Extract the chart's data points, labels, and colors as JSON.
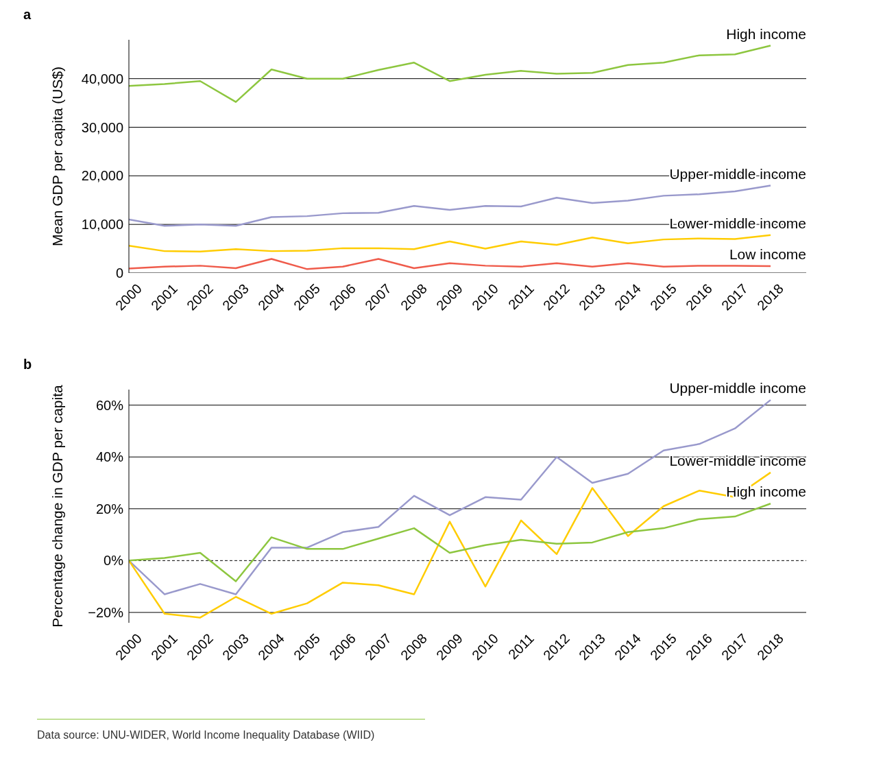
{
  "chart_data": [
    {
      "type": "line",
      "title": "a",
      "ylabel": "Mean GDP per capita (US$)",
      "x": [
        2000,
        2001,
        2002,
        2003,
        2004,
        2005,
        2006,
        2007,
        2008,
        2009,
        2010,
        2011,
        2012,
        2013,
        2014,
        2015,
        2016,
        2017,
        2018
      ],
      "xlim": [
        2000,
        2019
      ],
      "xticks": [
        2000,
        2001,
        2002,
        2003,
        2004,
        2005,
        2006,
        2007,
        2008,
        2009,
        2010,
        2011,
        2012,
        2013,
        2014,
        2015,
        2016,
        2017,
        2018
      ],
      "ylim": [
        0,
        48000
      ],
      "yticks": [
        {
          "value": 0,
          "label": "0"
        },
        {
          "value": 10000,
          "label": "10,000"
        },
        {
          "value": 20000,
          "label": "20,000"
        },
        {
          "value": 30000,
          "label": "30,000"
        },
        {
          "value": 40000,
          "label": "40,000"
        }
      ],
      "grid": "y",
      "legend": false,
      "marker": "none",
      "line_style": "solid",
      "series": [
        {
          "name": "High income",
          "color": "#8dc63f",
          "values": [
            38500,
            38900,
            39500,
            35200,
            41900,
            40000,
            40000,
            41800,
            43300,
            39500,
            40800,
            41600,
            41000,
            41200,
            42800,
            43300,
            44800,
            45000,
            46800
          ]
        },
        {
          "name": "Upper-middle income",
          "color": "#9999cc",
          "values": [
            11000,
            9700,
            10000,
            9700,
            11500,
            11700,
            12300,
            12400,
            13800,
            13000,
            13800,
            13700,
            15500,
            14400,
            14900,
            15900,
            16200,
            16800,
            18000
          ]
        },
        {
          "name": "Lower-middle income",
          "color": "#ffcc00",
          "values": [
            5600,
            4500,
            4400,
            4900,
            4500,
            4600,
            5100,
            5100,
            4900,
            6500,
            5000,
            6500,
            5800,
            7300,
            6100,
            6900,
            7100,
            7000,
            7800
          ]
        },
        {
          "name": "Low income",
          "color": "#ef5b4b",
          "values": [
            900,
            1300,
            1500,
            1000,
            2900,
            800,
            1300,
            2900,
            1000,
            2000,
            1500,
            1300,
            2000,
            1300,
            2000,
            1300,
            1500,
            1500,
            1400
          ]
        }
      ]
    },
    {
      "type": "line",
      "title": "b",
      "ylabel": "Percentage change in GDP per capita",
      "x": [
        2000,
        2001,
        2002,
        2003,
        2004,
        2005,
        2006,
        2007,
        2008,
        2009,
        2010,
        2011,
        2012,
        2013,
        2014,
        2015,
        2016,
        2017,
        2018
      ],
      "xlim": [
        2000,
        2019
      ],
      "xticks": [
        2000,
        2001,
        2002,
        2003,
        2004,
        2005,
        2006,
        2007,
        2008,
        2009,
        2010,
        2011,
        2012,
        2013,
        2014,
        2015,
        2016,
        2017,
        2018
      ],
      "ylim": [
        -24,
        66
      ],
      "yticks": [
        {
          "value": -20,
          "label": "−20%"
        },
        {
          "value": 0,
          "label": "0%"
        },
        {
          "value": 20,
          "label": "20%"
        },
        {
          "value": 40,
          "label": "40%"
        },
        {
          "value": 60,
          "label": "60%"
        }
      ],
      "grid": "y",
      "legend": false,
      "marker": "none",
      "line_style": "solid",
      "ref_lines": [
        {
          "axis": "y",
          "value": 0,
          "line_style": "dashed",
          "color": "#000000"
        }
      ],
      "annotations": [
        "Data source: UNU-WIDER, World Income Inequality Database (WIID)"
      ],
      "series": [
        {
          "name": "Upper-middle income",
          "color": "#9999cc",
          "values": [
            0,
            -13,
            -9,
            -13,
            5,
            5,
            11,
            13,
            25,
            17.5,
            24.5,
            23.5,
            40,
            30,
            33.5,
            42.5,
            45,
            51,
            62
          ]
        },
        {
          "name": "Lower-middle income",
          "color": "#ffcc00",
          "values": [
            0,
            -20.5,
            -22,
            -14,
            -20.5,
            -16.5,
            -8.5,
            -9.5,
            -13,
            15,
            -10,
            15.5,
            2.5,
            28,
            9.5,
            21,
            27,
            24.5,
            34
          ]
        },
        {
          "name": "High income",
          "color": "#8dc63f",
          "values": [
            0,
            1,
            3,
            -8,
            9,
            4.5,
            4.5,
            8.5,
            12.5,
            3,
            6,
            8,
            6.5,
            7,
            11,
            12.5,
            16,
            17,
            22
          ]
        }
      ]
    }
  ]
}
